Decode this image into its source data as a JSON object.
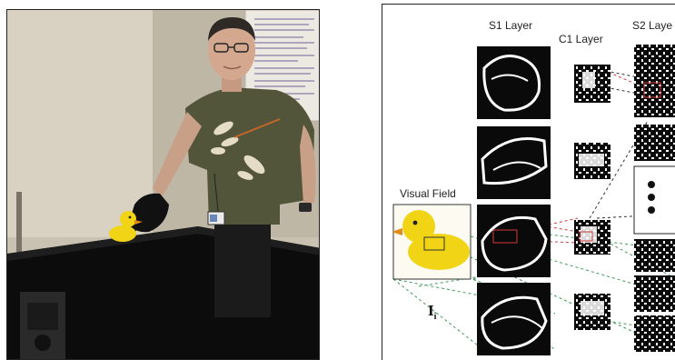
{
  "figure": {
    "photo": {
      "icon_names": [
        "poster-icon",
        "duck-icon",
        "glove-icon",
        "badge-icon",
        "watch-icon",
        "speaker-icon"
      ]
    },
    "diagram": {
      "layer_labels": {
        "s1": "S1 Layer",
        "c1": "C1 Layer",
        "s2": "S2 Laye"
      },
      "visual_field_label": "Visual Field",
      "input_symbol": "I",
      "input_subscript": "i",
      "colors": {
        "map_background": "#0a0a0a",
        "map_foreground": "#ffffff",
        "link_red": "#d23a3a",
        "link_green": "#3f9c5a",
        "link_dark": "#333333",
        "duck_yellow": "#f2d417"
      }
    }
  }
}
